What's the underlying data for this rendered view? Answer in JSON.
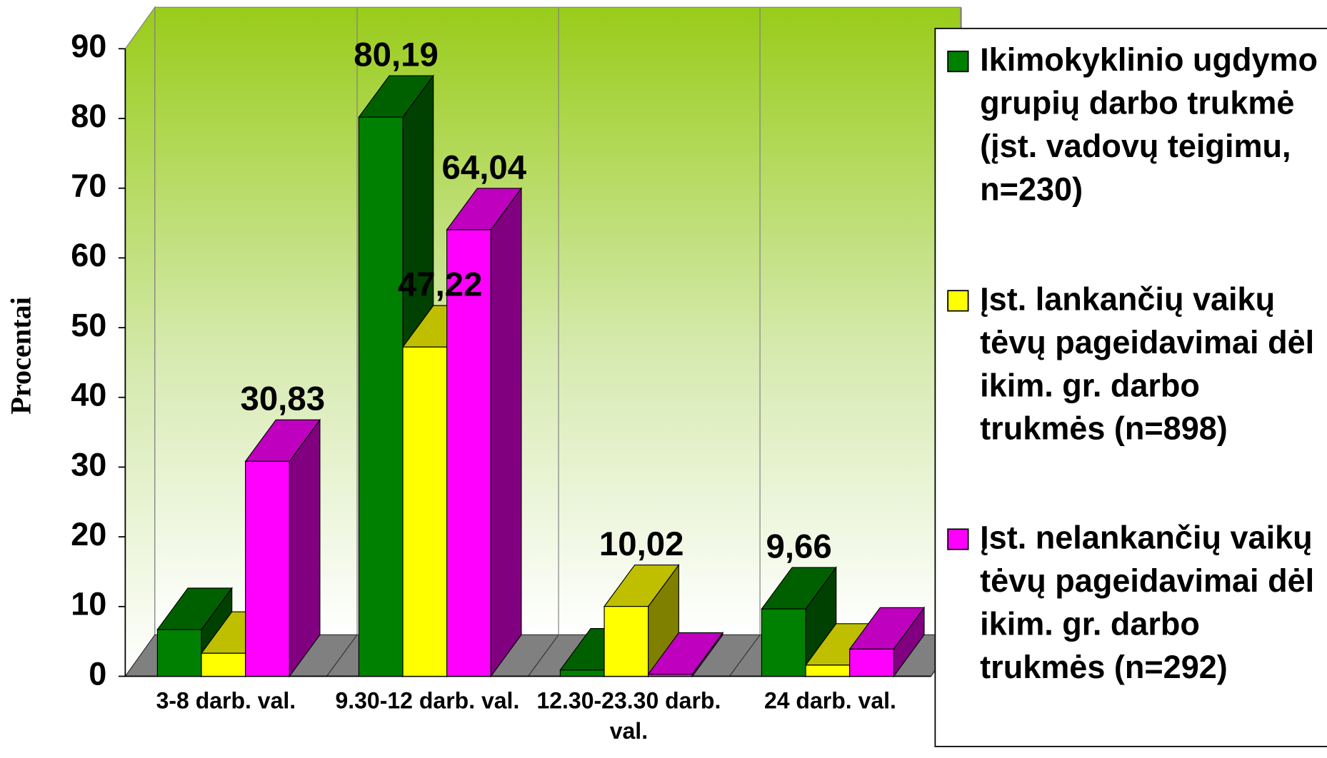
{
  "chart_data": {
    "type": "bar3d",
    "y_label": "Procentai",
    "categories": [
      "3-8 darb. val.",
      "9.30-12 darb. val.",
      "12.30-23.30 darb. val.",
      "24 darb. val."
    ],
    "series": [
      {
        "name": "Ikimokyklinio ugdymo grupių darbo trukmė (įst. vadovų teigimu, n=230)",
        "color": "#008000",
        "values": [
          6.7,
          80.19,
          0.9,
          9.66
        ],
        "value_labels": [
          null,
          "80,19",
          null,
          "9,66"
        ]
      },
      {
        "name": "Įst. lankančių vaikų tėvų pageidavimai dėl ikim. gr. darbo trukmės (n=898)",
        "color": "#ffff00",
        "values": [
          3.3,
          47.22,
          10.02,
          1.6
        ],
        "value_labels": [
          null,
          "47,22",
          "10,02",
          null
        ]
      },
      {
        "name": "Įst. nelankančių vaikų tėvų pageidavimai dėl ikim. gr. darbo trukmės (n=292)",
        "color": "#ff00ff",
        "values": [
          30.83,
          64.04,
          0.3,
          3.9
        ],
        "value_labels": [
          "30,83",
          "64,04",
          null,
          null
        ]
      }
    ],
    "ylim": [
      0,
      90
    ],
    "yticks": [
      0,
      10,
      20,
      30,
      40,
      50,
      60,
      70,
      80,
      90
    ],
    "legend": "right"
  }
}
